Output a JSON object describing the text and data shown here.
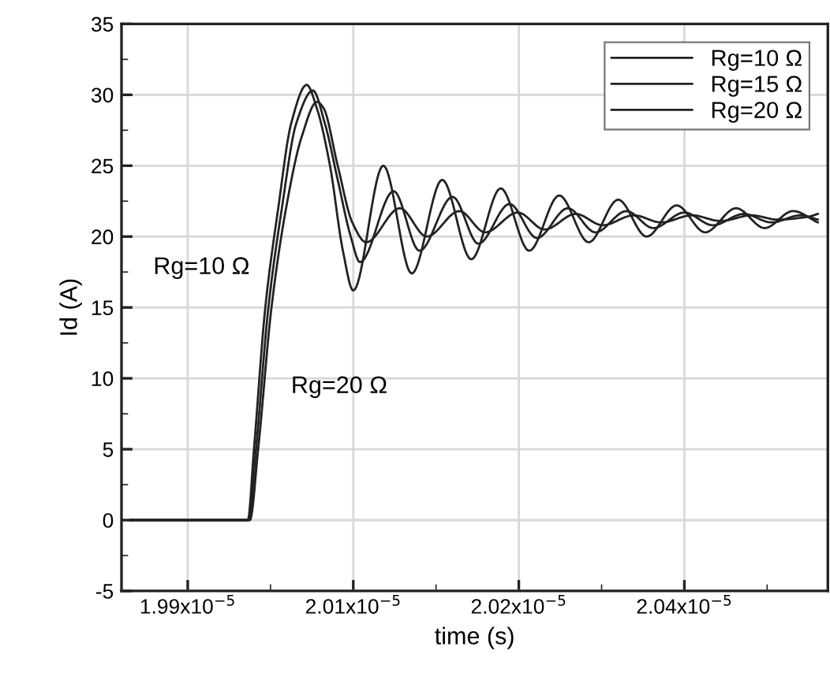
{
  "chart_data": {
    "type": "line",
    "xlabel": "time (s)",
    "ylabel": "Id (A)",
    "xlim": [
      1.984e-05,
      2.048e-05
    ],
    "ylim": [
      -5,
      35
    ],
    "xticks": [
      {
        "value": 1.99e-05,
        "label": "1.99x10$^{−5}$"
      },
      {
        "value": 2.005e-05,
        "label": "2.01x10$^{−5}$"
      },
      {
        "value": 2.02e-05,
        "label": "2.02x10$^{−5}$"
      },
      {
        "value": 2.035e-05,
        "label": "2.04x10$^{−5}$"
      }
    ],
    "yticks": [
      -5,
      0,
      5,
      10,
      15,
      20,
      25,
      30,
      35
    ],
    "grid": true,
    "legend": "top right",
    "line_style": "solid",
    "marker": "none",
    "annotations": [
      "Rg=10 Ω",
      "Rg=20 Ω"
    ],
    "series": [
      {
        "name": "Rg=10 Ω",
        "color": "#222222",
        "x": [
          1.98484e-05,
          1.99544e-05,
          1.996e-05,
          1.99703e-05,
          1.9982e-05,
          1.99938e-05,
          2.00078e-05,
          2.00172e-05,
          2.00289e-05,
          2.00406e-05,
          2.005e-05,
          2.00772e-05,
          2.0103e-05,
          2.01306e-05,
          2.01569e-05,
          2.01836e-05,
          2.02094e-05,
          2.02366e-05,
          2.02633e-05,
          2.029e-05,
          2.03158e-05,
          2.0343e-05,
          2.03688e-05,
          2.03969e-05,
          2.04227e-05,
          2.04484e-05,
          2.04709e-05
        ],
        "values": [
          0,
          0,
          5,
          15,
          22,
          28,
          30.7,
          29,
          25,
          19,
          16.2,
          25.0,
          17.4,
          24.0,
          18.4,
          23.4,
          19.0,
          22.9,
          19.6,
          22.6,
          20.0,
          22.2,
          20.3,
          22.0,
          20.6,
          21.8,
          21.0
        ]
      },
      {
        "name": "Rg=15 Ω",
        "color": "#222222",
        "x": [
          1.98484e-05,
          1.99553e-05,
          1.99619e-05,
          1.99731e-05,
          1.99853e-05,
          1.99984e-05,
          2.00134e-05,
          2.00242e-05,
          2.00359e-05,
          2.00477e-05,
          2.00561e-05,
          2.00866e-05,
          2.011e-05,
          2.014e-05,
          2.01634e-05,
          2.01916e-05,
          2.02164e-05,
          2.02445e-05,
          2.02694e-05,
          2.02975e-05,
          2.03219e-05,
          2.035e-05,
          2.03758e-05,
          2.04039e-05,
          2.04288e-05,
          2.04555e-05,
          2.04709e-05
        ],
        "values": [
          0,
          0,
          5,
          15,
          22,
          28,
          30.3,
          28,
          24,
          20,
          18.2,
          23.2,
          19.0,
          22.8,
          19.5,
          22.3,
          19.9,
          22.0,
          20.3,
          21.8,
          20.6,
          21.7,
          20.8,
          21.6,
          21.0,
          21.5,
          21.2
        ]
      },
      {
        "name": "Rg=20 Ω",
        "color": "#222222",
        "x": [
          1.98484e-05,
          1.99563e-05,
          1.99638e-05,
          1.99759e-05,
          1.99891e-05,
          2.00031e-05,
          2.00172e-05,
          2.00228e-05,
          2.00359e-05,
          2.00491e-05,
          2.00617e-05,
          2.00922e-05,
          2.01166e-05,
          2.01461e-05,
          2.01695e-05,
          2.01991e-05,
          2.02234e-05,
          2.02516e-05,
          2.02759e-05,
          2.03041e-05,
          2.03289e-05,
          2.0357e-05,
          2.03828e-05,
          2.04109e-05,
          2.04344e-05,
          2.04625e-05,
          2.04709e-05
        ],
        "values": [
          0,
          0,
          5,
          15,
          22,
          27,
          29.5,
          29.1,
          25,
          21,
          19.6,
          22.0,
          20.0,
          21.8,
          20.3,
          21.7,
          20.5,
          21.6,
          20.8,
          21.5,
          21.0,
          21.5,
          21.1,
          21.5,
          21.2,
          21.4,
          21.6
        ]
      }
    ]
  }
}
